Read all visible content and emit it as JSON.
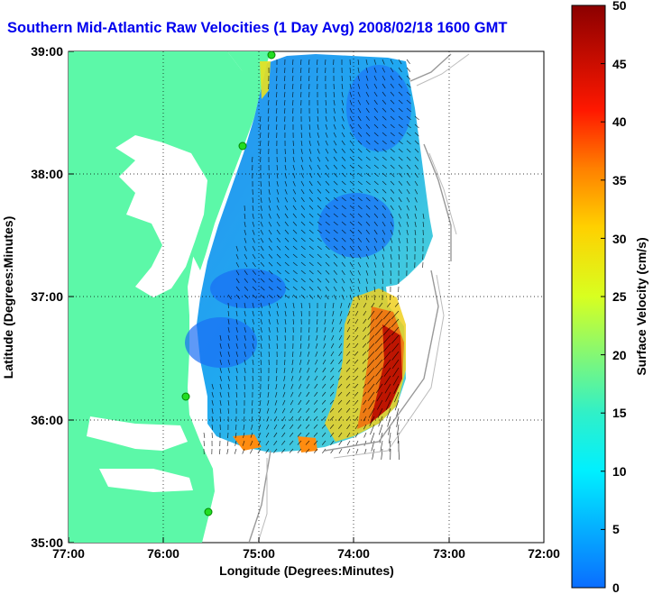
{
  "title": "Southern Mid-Atlantic Raw Velocities (1 Day Avg) 2008/02/18 1600 GMT",
  "map": {
    "xlabel": "Longitude (Degrees:Minutes)",
    "ylabel": "Latitude (Degrees:Minutes)",
    "x_ticks": [
      "77:00",
      "76:00",
      "75:00",
      "74:00",
      "73:00",
      "72:00"
    ],
    "y_ticks": [
      "39:00",
      "38:00",
      "37:00",
      "36:00",
      "35:00"
    ],
    "land_color": "#5cf8a8",
    "ocean_color": "#ffffff",
    "station_color": "#22dd22",
    "grid": "dotted"
  },
  "colorbar": {
    "label": "Surface Velocity (cm/s)",
    "ticks": [
      "0",
      "5",
      "10",
      "15",
      "20",
      "25",
      "30",
      "35",
      "40",
      "45",
      "50"
    ],
    "range": [
      0,
      50
    ],
    "colormap": "jet"
  }
}
